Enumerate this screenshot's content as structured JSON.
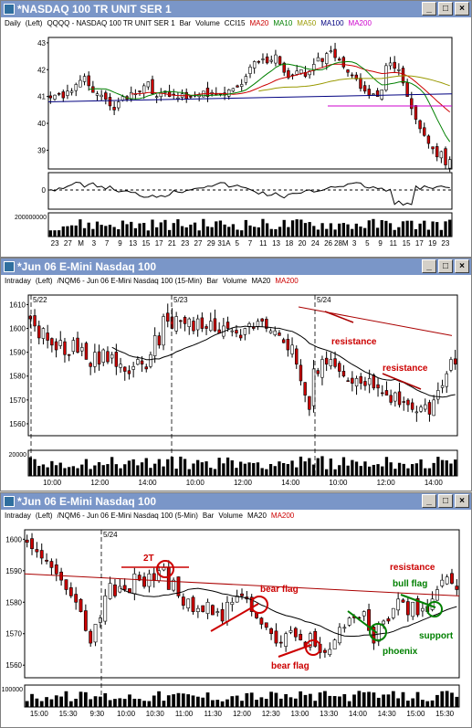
{
  "windows": [
    {
      "title": "*NASDAQ 100 TR UNIT SER 1",
      "info": [
        {
          "text": "Daily",
          "color": "#000000"
        },
        {
          "text": "(Left)",
          "color": "#000000"
        },
        {
          "text": "QQQQ - NASDAQ 100 TR UNIT SER 1",
          "color": "#000000"
        },
        {
          "text": "Bar",
          "color": "#000000"
        },
        {
          "text": "Volume",
          "color": "#000000"
        },
        {
          "text": "CCI15",
          "color": "#000000"
        },
        {
          "text": "MA20",
          "color": "#cc0000"
        },
        {
          "text": "MA10",
          "color": "#008000"
        },
        {
          "text": "MA50",
          "color": "#999900"
        },
        {
          "text": "MA100",
          "color": "#000080"
        },
        {
          "text": "MA200",
          "color": "#cc00cc"
        }
      ]
    },
    {
      "title": "*Jun 06  E-Mini Nasdaq 100",
      "info": [
        {
          "text": "Intraday",
          "color": "#000000"
        },
        {
          "text": "(Left)",
          "color": "#000000"
        },
        {
          "text": "/NQM6 - Jun 06 E-Mini Nasdaq 100 (15-Min)",
          "color": "#000000"
        },
        {
          "text": "Bar",
          "color": "#000000"
        },
        {
          "text": "Volume",
          "color": "#000000"
        },
        {
          "text": "MA20",
          "color": "#000000"
        },
        {
          "text": "MA200",
          "color": "#cc0000"
        }
      ]
    },
    {
      "title": "*Jun 06  E-Mini Nasdaq 100",
      "info": [
        {
          "text": "Intraday",
          "color": "#000000"
        },
        {
          "text": "(Left)",
          "color": "#000000"
        },
        {
          "text": "/NQM6 - Jun 06 E-Mini Nasdaq 100 (5-Min)",
          "color": "#000000"
        },
        {
          "text": "Bar",
          "color": "#000000"
        },
        {
          "text": "Volume",
          "color": "#000000"
        },
        {
          "text": "MA20",
          "color": "#000000"
        },
        {
          "text": "MA200",
          "color": "#cc0000"
        }
      ]
    }
  ],
  "window_buttons": [
    "_",
    "□",
    "×"
  ],
  "chart_data": [
    {
      "type": "candlestick",
      "title": "QQQQ - NASDAQ 100 TR UNIT SER 1",
      "yticks": [
        39,
        40,
        41,
        42,
        43
      ],
      "ylim": [
        38.3,
        43.2
      ],
      "xticks": [
        "23",
        "27",
        "M",
        "3",
        "7",
        "9",
        "13",
        "15",
        "17",
        "21",
        "23",
        "27",
        "29",
        "31A",
        "5",
        "7",
        "11",
        "13",
        "18",
        "20",
        "24",
        "26",
        "28M",
        "3",
        "5",
        "9",
        "11",
        "15",
        "17",
        "19",
        "23"
      ],
      "closes": [
        40.95,
        41.05,
        41.1,
        40.95,
        41.2,
        41.2,
        41.45,
        41.6,
        41.75,
        41.4,
        41.15,
        41.1,
        41.05,
        40.9,
        40.65,
        40.5,
        40.8,
        41.0,
        40.9,
        41.15,
        41.1,
        41.2,
        41.4,
        41.55,
        41.1,
        41.0,
        41.15,
        41.2,
        41.0,
        41.05,
        40.95,
        41.1,
        40.9,
        41.0,
        41.05,
        41.05,
        41.2,
        41.0,
        41.15,
        41.05,
        41.1,
        41.05,
        41.25,
        41.3,
        41.35,
        41.45,
        41.75,
        42.1,
        42.3,
        42.3,
        42.4,
        42.25,
        42.35,
        42.55,
        42.2,
        41.9,
        41.7,
        41.8,
        41.95,
        42.0,
        41.75,
        41.95,
        42.2,
        42.45,
        42.3,
        42.6,
        42.7,
        42.45,
        42.35,
        42.1,
        41.9,
        41.8,
        41.65,
        41.3,
        41.2,
        41.05,
        41.1,
        41.0,
        41.25,
        42.15,
        42.25,
        42.05,
        42.0,
        41.5,
        41.0,
        40.55,
        40.15,
        39.8,
        39.55,
        39.25,
        39.05,
        38.75,
        38.95,
        38.45,
        38.65
      ],
      "ma_series": [
        {
          "name": "MA20",
          "color": "#cc0000"
        },
        {
          "name": "MA10",
          "color": "#008000"
        },
        {
          "name": "MA50",
          "color": "#999900"
        },
        {
          "name": "MA100",
          "color": "#000080"
        },
        {
          "name": "MA200",
          "color": "#cc00cc",
          "values": [
            40.65,
            40.65
          ]
        }
      ],
      "cci": {
        "ytick": "0"
      },
      "volume": {
        "ytick": "200000000"
      }
    },
    {
      "type": "candlestick",
      "title": "/NQM6 - Jun 06 E-Mini Nasdaq 100 (15-Min)",
      "yticks": [
        1560,
        1570,
        1580,
        1590,
        1600,
        1610
      ],
      "ylim": [
        1555,
        1614
      ],
      "xticks": [
        "10:00",
        "12:00",
        "14:00",
        "10:00",
        "12:00",
        "14:00",
        "10:00",
        "12:00",
        "14:00"
      ],
      "dates": [
        "5/22",
        "5/23",
        "5/24"
      ],
      "closes": [
        1604,
        1601,
        1596,
        1600,
        1595,
        1593,
        1591,
        1595,
        1589,
        1589,
        1595,
        1590,
        1592,
        1587,
        1584,
        1590,
        1585,
        1591,
        1586,
        1589,
        1584,
        1585,
        1582,
        1581,
        1584,
        1587,
        1585,
        1583,
        1589,
        1597,
        1593,
        1605,
        1603,
        1600,
        1605,
        1603,
        1602,
        1604,
        1599,
        1604,
        1600,
        1600,
        1603,
        1599,
        1598,
        1601,
        1600,
        1599,
        1598,
        1596,
        1600,
        1602,
        1600,
        1603,
        1603,
        1600,
        1599,
        1599,
        1597,
        1594,
        1591,
        1593,
        1585,
        1578,
        1572,
        1566,
        1583,
        1581,
        1587,
        1585,
        1587,
        1584,
        1582,
        1580,
        1578,
        1577,
        1579,
        1577,
        1576,
        1579,
        1575,
        1575,
        1573,
        1572,
        1569,
        1573,
        1568,
        1569,
        1568,
        1566,
        1565,
        1567,
        1568,
        1564,
        1570,
        1574,
        1576,
        1581,
        1587,
        1585
      ],
      "ma200": [
        1609,
        1597
      ],
      "annotations": [
        {
          "text": "resistance",
          "color": "#cc0000"
        },
        {
          "text": "resistance",
          "color": "#cc0000"
        }
      ],
      "volume": {
        "ytick": "20000"
      }
    },
    {
      "type": "candlestick",
      "title": "/NQM6 - Jun 06 E-Mini Nasdaq 100 (5-Min)",
      "yticks": [
        1560,
        1570,
        1580,
        1590,
        1600
      ],
      "ylim": [
        1556,
        1603
      ],
      "xticks": [
        "15:00",
        "15:30",
        "9:30",
        "10:00",
        "10:30",
        "11:00",
        "11:30",
        "12:00",
        "12:30",
        "13:00",
        "13:30",
        "14:00",
        "14:30",
        "15:00",
        "15:30"
      ],
      "dates": [
        "5/24"
      ],
      "closes": [
        1599,
        1597,
        1596,
        1594,
        1593,
        1591,
        1589,
        1587,
        1584,
        1582,
        1580,
        1577,
        1571,
        1567,
        1573,
        1575,
        1582,
        1586,
        1582,
        1585,
        1584,
        1583,
        1589,
        1587,
        1585,
        1589,
        1587,
        1590,
        1591,
        1584,
        1587,
        1582,
        1579,
        1581,
        1577,
        1578,
        1577,
        1580,
        1576,
        1577,
        1574,
        1580,
        1580,
        1582,
        1582,
        1581,
        1577,
        1575,
        1573,
        1572,
        1570,
        1567,
        1567,
        1570,
        1571,
        1569,
        1568,
        1566,
        1570,
        1566,
        1564,
        1564,
        1565,
        1568,
        1572,
        1572,
        1575,
        1575,
        1575,
        1577,
        1571,
        1567,
        1573,
        1574,
        1574,
        1578,
        1581,
        1580,
        1576,
        1580,
        1576,
        1578,
        1577,
        1581,
        1584,
        1587,
        1588,
        1586,
        1584
      ],
      "ma200": [
        1589,
        1582
      ],
      "annotations": [
        {
          "text": "2T",
          "color": "#cc0000"
        },
        {
          "text": "bear flag",
          "color": "#cc0000"
        },
        {
          "text": "bear flag",
          "color": "#cc0000"
        },
        {
          "text": "resistance",
          "color": "#cc0000"
        },
        {
          "text": "bull flag",
          "color": "#008000"
        },
        {
          "text": "support",
          "color": "#008000"
        },
        {
          "text": "phoenix",
          "color": "#008000"
        }
      ],
      "volume": {
        "ytick": "100000"
      }
    }
  ]
}
